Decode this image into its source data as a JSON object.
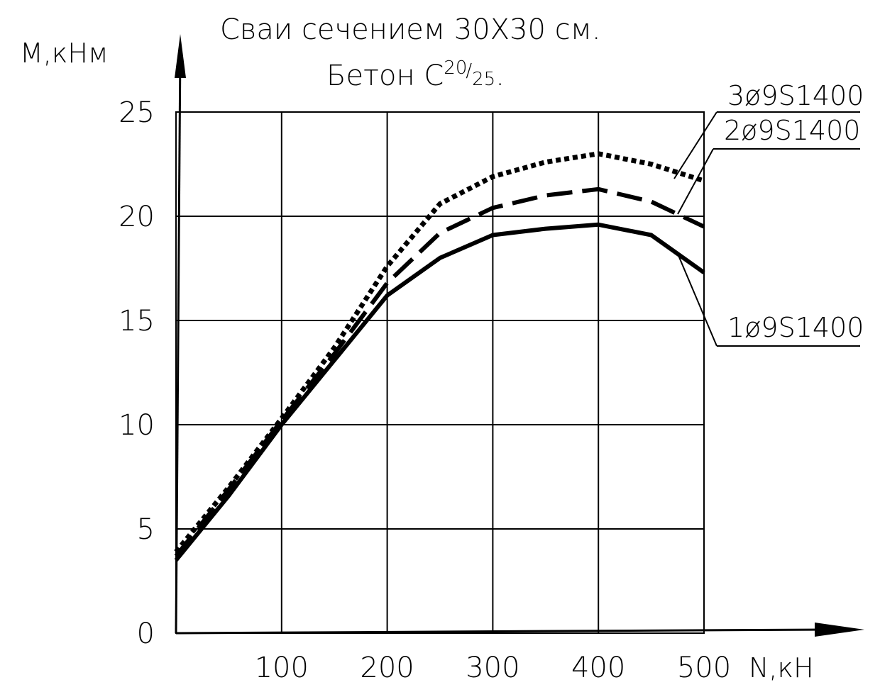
{
  "chart_data": {
    "type": "line",
    "title_line1": "Сваи сечением 30X30 см.",
    "title_line2_prefix": "Бетон C",
    "title_sup": "20",
    "title_sub": "25",
    "title_line2_suffix": ".",
    "xlabel": "N,кН",
    "ylabel": "M,кНм",
    "xlim": [
      0,
      500
    ],
    "ylim": [
      0,
      25
    ],
    "x_ticks": [
      "100",
      "200",
      "300",
      "400",
      "500"
    ],
    "y_ticks": [
      "0",
      "5",
      "10",
      "15",
      "20",
      "25"
    ],
    "grid": true,
    "series": [
      {
        "name": "3ø9S1400",
        "style": "dotted",
        "points": [
          [
            0,
            3.9
          ],
          [
            50,
            7.0
          ],
          [
            100,
            10.3
          ],
          [
            150,
            13.7
          ],
          [
            200,
            17.6
          ],
          [
            250,
            20.6
          ],
          [
            300,
            21.9
          ],
          [
            350,
            22.6
          ],
          [
            400,
            23.0
          ],
          [
            450,
            22.5
          ],
          [
            500,
            21.7
          ]
        ]
      },
      {
        "name": "2ø9S1400",
        "style": "dashed",
        "points": [
          [
            0,
            3.7
          ],
          [
            50,
            6.9
          ],
          [
            100,
            10.2
          ],
          [
            150,
            13.4
          ],
          [
            200,
            16.8
          ],
          [
            250,
            19.2
          ],
          [
            300,
            20.4
          ],
          [
            350,
            21.0
          ],
          [
            400,
            21.3
          ],
          [
            450,
            20.7
          ],
          [
            500,
            19.5
          ]
        ]
      },
      {
        "name": "1ø9S1400",
        "style": "solid",
        "points": [
          [
            0,
            3.5
          ],
          [
            50,
            6.6
          ],
          [
            100,
            10.0
          ],
          [
            150,
            13.1
          ],
          [
            200,
            16.2
          ],
          [
            250,
            18.0
          ],
          [
            300,
            19.1
          ],
          [
            350,
            19.4
          ],
          [
            400,
            19.6
          ],
          [
            450,
            19.1
          ],
          [
            500,
            17.3
          ]
        ]
      }
    ]
  }
}
